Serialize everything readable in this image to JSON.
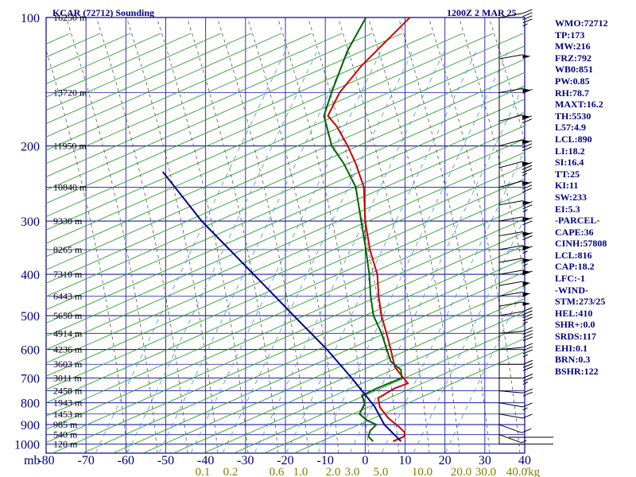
{
  "title": "KCAR (72712) Sounding",
  "valid_time": "1200Z  2 MAR 25",
  "chart_data": {
    "type": "line",
    "title": "KCAR (72712) Sounding",
    "subtitle": "1200Z  2 MAR 25",
    "x_unit_label": "mb",
    "xlim": [
      -80,
      40
    ],
    "pressure_ticks": [
      100,
      200,
      300,
      400,
      500,
      600,
      700,
      800,
      900,
      1000
    ],
    "temperature_ticks": [
      -80,
      -70,
      -60,
      -50,
      -40,
      -30,
      -20,
      -10,
      0,
      10,
      20,
      30,
      40
    ],
    "mixing_ratio_ticks": [
      "0.1",
      "0.2",
      "0.6",
      "1.0",
      "2.0",
      "3.0",
      "5.0",
      "10.0",
      "20.0",
      "30.0",
      "40.0"
    ],
    "mixing_ratio_unit": "g/kg",
    "height_labels": [
      {
        "p": 100,
        "label": "16250 m"
      },
      {
        "p": 150,
        "label": "13720 m"
      },
      {
        "p": 200,
        "label": "11950 m"
      },
      {
        "p": 250,
        "label": "10840 m"
      },
      {
        "p": 300,
        "label": "9330 m"
      },
      {
        "p": 350,
        "label": "8265 m"
      },
      {
        "p": 400,
        "label": "7310 m"
      },
      {
        "p": 450,
        "label": "6443 m"
      },
      {
        "p": 500,
        "label": "5650 m"
      },
      {
        "p": 550,
        "label": "4914 m"
      },
      {
        "p": 600,
        "label": "4236 m"
      },
      {
        "p": 650,
        "label": "3603 m"
      },
      {
        "p": 700,
        "label": "3011 m"
      },
      {
        "p": 750,
        "label": "2458 m"
      },
      {
        "p": 800,
        "label": "1943 m"
      },
      {
        "p": 850,
        "label": "1453 m"
      },
      {
        "p": 900,
        "label": "985 m"
      },
      {
        "p": 950,
        "label": "540 m"
      },
      {
        "p": 1000,
        "label": "120 m"
      }
    ],
    "series": [
      {
        "type": "temperature",
        "color": "#cc0000",
        "points": [
          [
            985,
            5
          ],
          [
            960,
            7
          ],
          [
            940,
            6.5
          ],
          [
            910,
            4
          ],
          [
            870,
            0
          ],
          [
            820,
            -4
          ],
          [
            780,
            -6
          ],
          [
            740,
            -3.5
          ],
          [
            720,
            -1
          ],
          [
            700,
            -3
          ],
          [
            660,
            -7
          ],
          [
            600,
            -11
          ],
          [
            560,
            -14
          ],
          [
            500,
            -19
          ],
          [
            450,
            -23
          ],
          [
            400,
            -27
          ],
          [
            350,
            -33
          ],
          [
            300,
            -39
          ],
          [
            250,
            -45
          ],
          [
            220,
            -51
          ],
          [
            200,
            -56
          ],
          [
            180,
            -62
          ],
          [
            170,
            -66
          ],
          [
            150,
            -67
          ],
          [
            130,
            -66
          ],
          [
            100,
            -62
          ]
        ]
      },
      {
        "type": "dewpoint",
        "color": "#006400",
        "points": [
          [
            985,
            0
          ],
          [
            960,
            -2
          ],
          [
            930,
            -2.5
          ],
          [
            900,
            -2
          ],
          [
            880,
            -5
          ],
          [
            850,
            -8
          ],
          [
            800,
            -8.5
          ],
          [
            770,
            -10.5
          ],
          [
            740,
            -8
          ],
          [
            700,
            -3.5
          ],
          [
            670,
            -5
          ],
          [
            640,
            -9
          ],
          [
            600,
            -12
          ],
          [
            550,
            -16
          ],
          [
            500,
            -21
          ],
          [
            450,
            -25
          ],
          [
            400,
            -29
          ],
          [
            350,
            -34
          ],
          [
            300,
            -40
          ],
          [
            250,
            -47
          ],
          [
            220,
            -54
          ],
          [
            200,
            -60
          ],
          [
            170,
            -67
          ],
          [
            150,
            -69
          ],
          [
            120,
            -72
          ],
          [
            100,
            -73
          ]
        ]
      },
      {
        "type": "parcel",
        "color": "#00008b",
        "points": [
          [
            985,
            7
          ],
          [
            900,
            0
          ],
          [
            816,
            -5.5
          ],
          [
            700,
            -16
          ],
          [
            600,
            -27
          ],
          [
            500,
            -41
          ],
          [
            400,
            -58
          ],
          [
            300,
            -80
          ],
          [
            230,
            -98
          ]
        ]
      }
    ]
  },
  "indices": [
    "WMO:72712",
    "TP:173",
    "MW:216",
    "FRZ:792",
    "WB0:851",
    "PW:0.85",
    "RH:78.7",
    "MAXT:16.2",
    "TH:5530",
    "L57:4.9",
    "LCL:890",
    "LI:18.2",
    "SI:16.4",
    "TT:25",
    "KI:11",
    "SW:233",
    "EI:5.3",
    "-PARCEL-",
    "CAPE:36",
    "CINH:57808",
    "LCL:816",
    "CAP:18.2",
    "LFC:-1",
    "-WIND-",
    "STM:273/25",
    "HEL:410",
    "SHR+:0.0",
    "SRDS:117",
    "EHI:0.1",
    "BRN:0.3",
    "BSHR:122"
  ],
  "wind_profile": [
    {
      "p": 100,
      "dir": 280,
      "speed": 45
    },
    {
      "p": 125,
      "dir": 280,
      "speed": 50
    },
    {
      "p": 150,
      "dir": 280,
      "speed": 60
    },
    {
      "p": 175,
      "dir": 285,
      "speed": 70
    },
    {
      "p": 200,
      "dir": 285,
      "speed": 80
    },
    {
      "p": 225,
      "dir": 285,
      "speed": 85
    },
    {
      "p": 250,
      "dir": 285,
      "speed": 80
    },
    {
      "p": 275,
      "dir": 280,
      "speed": 75
    },
    {
      "p": 300,
      "dir": 280,
      "speed": 70
    },
    {
      "p": 325,
      "dir": 280,
      "speed": 70
    },
    {
      "p": 350,
      "dir": 280,
      "speed": 65
    },
    {
      "p": 375,
      "dir": 280,
      "speed": 65
    },
    {
      "p": 400,
      "dir": 280,
      "speed": 60
    },
    {
      "p": 425,
      "dir": 280,
      "speed": 55
    },
    {
      "p": 450,
      "dir": 280,
      "speed": 55
    },
    {
      "p": 475,
      "dir": 280,
      "speed": 50
    },
    {
      "p": 500,
      "dir": 280,
      "speed": 45
    },
    {
      "p": 550,
      "dir": 275,
      "speed": 40
    },
    {
      "p": 600,
      "dir": 275,
      "speed": 35
    },
    {
      "p": 650,
      "dir": 270,
      "speed": 30
    },
    {
      "p": 700,
      "dir": 270,
      "speed": 25
    },
    {
      "p": 750,
      "dir": 265,
      "speed": 20
    },
    {
      "p": 800,
      "dir": 260,
      "speed": 15
    },
    {
      "p": 850,
      "dir": 260,
      "speed": 10
    },
    {
      "p": 900,
      "dir": 250,
      "speed": 10
    },
    {
      "p": 950,
      "dir": 250,
      "speed": 5
    },
    {
      "p": 1000,
      "dir": 0,
      "speed": 0
    }
  ],
  "colors": {
    "frame": "#00008b",
    "grid": "#1a1aa8",
    "dry_adiabat": "#2e9e2e",
    "moist_adiabat": "#555555",
    "mixing_ratio": "#4a90e2",
    "temperature": "#cc0000",
    "dewpoint": "#006400",
    "parcel": "#00008b",
    "mixing_label": "#808000",
    "text": "#000080",
    "wind": "#000000"
  }
}
